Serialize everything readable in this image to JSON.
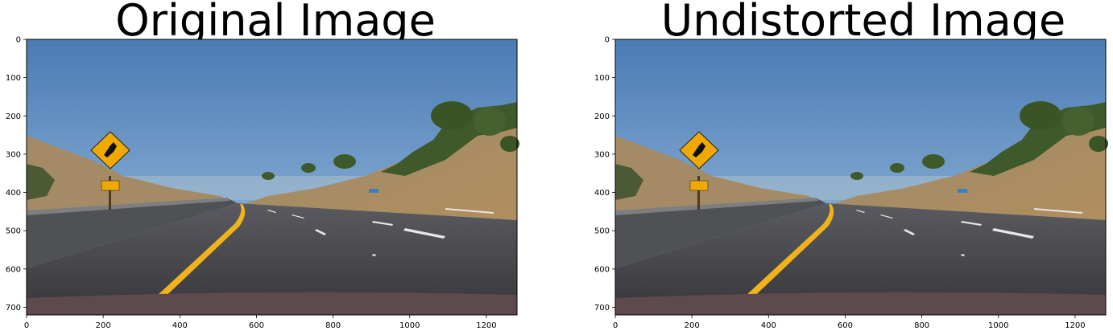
{
  "panels": [
    {
      "title": "Original Image",
      "x_ticks": [
        "0",
        "200",
        "400",
        "600",
        "800",
        "1000",
        "1200"
      ],
      "y_ticks": [
        "0",
        "100",
        "200",
        "300",
        "400",
        "500",
        "600",
        "700"
      ]
    },
    {
      "title": "Undistorted Image",
      "x_ticks": [
        "0",
        "200",
        "400",
        "600",
        "800",
        "1000",
        "1200"
      ],
      "y_ticks": [
        "0",
        "100",
        "200",
        "300",
        "400",
        "500",
        "600",
        "700"
      ]
    }
  ],
  "image_extent": {
    "width": 1280,
    "height": 720
  },
  "colors": {
    "sky_top": "#4d7fb7",
    "sky_bottom": "#90b3d5",
    "road": "#3b3b40",
    "hill": "#a88a60",
    "vegetation": "#3b5527",
    "yellow_line": "#f1b21c",
    "sign": "#f0a900"
  }
}
